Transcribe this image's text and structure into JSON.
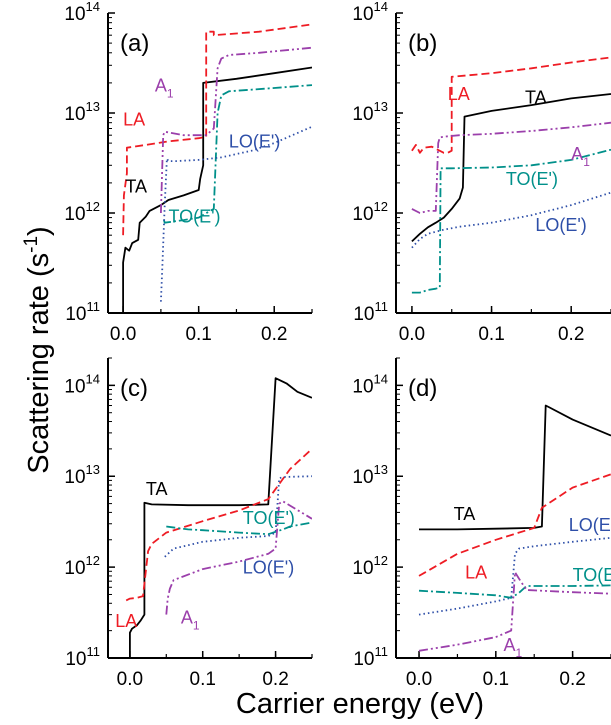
{
  "figure": {
    "ylabel": "Scattering rate (s",
    "ylabel_sup": "-1",
    "ylabel_close": ")",
    "xlabel": "Carrier energy (eV)"
  },
  "colors": {
    "TA": "#000000",
    "LA": "#ee1c24",
    "A1": "#9b3fab",
    "TO": "#00908a",
    "LO": "#2e4fa8",
    "axis": "#000000"
  },
  "chart_data": [
    {
      "panel": "(a)",
      "type": "line",
      "ylog": true,
      "xlim": [
        -0.02,
        0.25
      ],
      "ylim": [
        100000000000.0,
        100000000000000.0
      ],
      "xticks": [
        0.0,
        0.1,
        0.2
      ],
      "xticklabels": [
        "0.0",
        "0.1",
        "0.2"
      ],
      "yticks": [
        100000000000.0,
        1000000000000.0,
        10000000000000.0,
        100000000000000.0
      ],
      "yticklabels": [
        {
          "base": "10",
          "exp": "11"
        },
        {
          "base": "10",
          "exp": "12"
        },
        {
          "base": "10",
          "exp": "13"
        },
        {
          "base": "10",
          "exp": "14"
        }
      ],
      "series": [
        {
          "name": "TA",
          "style": "solid",
          "color_key": "TA",
          "x": [
            0.0,
            0.0,
            0.003,
            0.008,
            0.012,
            0.02,
            0.022,
            0.03,
            0.035,
            0.05,
            0.06,
            0.08,
            0.1,
            0.102,
            0.106,
            0.106,
            0.15,
            0.2,
            0.25
          ],
          "y": [
            100000000000.0,
            320000000000.0,
            450000000000.0,
            420000000000.0,
            500000000000.0,
            540000000000.0,
            800000000000.0,
            920000000000.0,
            1050000000000.0,
            1200000000000.0,
            1350000000000.0,
            1500000000000.0,
            1700000000000.0,
            2200000000000.0,
            3000000000000.0,
            20000000000000.0,
            22000000000000.0,
            25000000000000.0,
            28500000000000.0
          ]
        },
        {
          "name": "LA",
          "style": "dashed",
          "color_key": "LA",
          "x": [
            0.0,
            0.001,
            0.005,
            0.005,
            0.03,
            0.06,
            0.1,
            0.11,
            0.11,
            0.12,
            0.12,
            0.18,
            0.25
          ],
          "y": [
            600000000000.0,
            1500000000000.0,
            2500000000000.0,
            4500000000000.0,
            4800000000000.0,
            5200000000000.0,
            5600000000000.0,
            5800000000000.0,
            65000000000000.0,
            65000000000000.0,
            60000000000000.0,
            65000000000000.0,
            77000000000000.0
          ]
        },
        {
          "name": "A1",
          "style": "dashdotdot",
          "color_key": "A1",
          "x": [
            0.05,
            0.053,
            0.055,
            0.08,
            0.11,
            0.12,
            0.125,
            0.13,
            0.14,
            0.18,
            0.25
          ],
          "y": [
            1000000000000.0,
            6000000000000.0,
            6500000000000.0,
            6000000000000.0,
            6000000000000.0,
            7000000000000.0,
            28000000000000.0,
            35000000000000.0,
            38000000000000.0,
            40000000000000.0,
            45000000000000.0
          ]
        },
        {
          "name": "TO(E')",
          "style": "dashdot",
          "color_key": "TO",
          "x": [
            0.054,
            0.055,
            0.08,
            0.1,
            0.115,
            0.12,
            0.125,
            0.13,
            0.14,
            0.2,
            0.25
          ],
          "y": [
            850000000000.0,
            800000000000.0,
            850000000000.0,
            900000000000.0,
            1050000000000.0,
            1100000000000.0,
            10000000000000.0,
            15000000000000.0,
            16500000000000.0,
            17800000000000.0,
            19000000000000.0
          ]
        },
        {
          "name": "LO(E')",
          "style": "dotted",
          "color_key": "LO",
          "x": [
            0.05,
            0.052,
            0.055,
            0.058,
            0.06,
            0.07,
            0.1,
            0.13,
            0.17,
            0.2,
            0.25
          ],
          "y": [
            130000000000.0,
            300000000000.0,
            1200000000000.0,
            3500000000000.0,
            3300000000000.0,
            3300000000000.0,
            3400000000000.0,
            3600000000000.0,
            4200000000000.0,
            5000000000000.0,
            7300000000000.0
          ]
        }
      ],
      "labels": [
        {
          "text": "TA",
          "color_key": "TA",
          "x": 0.003,
          "y": 1600000000000.0
        },
        {
          "text": "LA",
          "color_key": "LA",
          "x": 0.0,
          "y": 7500000000000.0
        },
        {
          "text": "A",
          "sub": "1",
          "color_key": "A1",
          "x": 0.042,
          "y": 16500000000000.0
        },
        {
          "text": "LO(E')",
          "color_key": "LO",
          "x": 0.14,
          "y": 4500000000000.0
        },
        {
          "text": "TO(E')",
          "color_key": "TO",
          "x": 0.06,
          "y": 800000000000.0
        }
      ]
    },
    {
      "panel": "(b)",
      "type": "line",
      "ylog": true,
      "xlim": [
        -0.02,
        0.25
      ],
      "ylim": [
        100000000000.0,
        100000000000000.0
      ],
      "xticks": [
        0.0,
        0.1,
        0.2
      ],
      "xticklabels": [
        "0.0",
        "0.1",
        "0.2"
      ],
      "yticks": [
        100000000000.0,
        1000000000000.0,
        10000000000000.0,
        100000000000000.0
      ],
      "yticklabels": [
        {
          "base": "10",
          "exp": "11"
        },
        {
          "base": "10",
          "exp": "12"
        },
        {
          "base": "10",
          "exp": "13"
        },
        {
          "base": "10",
          "exp": "14"
        }
      ],
      "series": [
        {
          "name": "TA",
          "style": "solid",
          "color_key": "TA",
          "x": [
            0.0,
            0.01,
            0.02,
            0.03,
            0.04,
            0.05,
            0.06,
            0.064,
            0.066,
            0.1,
            0.15,
            0.2,
            0.25
          ],
          "y": [
            520000000000.0,
            620000000000.0,
            720000000000.0,
            800000000000.0,
            900000000000.0,
            1100000000000.0,
            1400000000000.0,
            1800000000000.0,
            9200000000000.0,
            10500000000000.0,
            12000000000000.0,
            14000000000000.0,
            15500000000000.0
          ]
        },
        {
          "name": "LA",
          "style": "dashed",
          "color_key": "LA",
          "x": [
            0.0,
            0.005,
            0.01,
            0.015,
            0.025,
            0.04,
            0.045,
            0.05,
            0.05,
            0.1,
            0.15,
            0.2,
            0.25
          ],
          "y": [
            4200000000000.0,
            4800000000000.0,
            4000000000000.0,
            4500000000000.0,
            4600000000000.0,
            4000000000000.0,
            4000000000000.0,
            4200000000000.0,
            23000000000000.0,
            25000000000000.0,
            28000000000000.0,
            32000000000000.0,
            36000000000000.0
          ]
        },
        {
          "name": "A1",
          "style": "dashdotdot",
          "color_key": "A1",
          "x": [
            0.0,
            0.01,
            0.02,
            0.03,
            0.033,
            0.035,
            0.04,
            0.06,
            0.1,
            0.15,
            0.2,
            0.25
          ],
          "y": [
            1100000000000.0,
            1000000000000.0,
            1050000000000.0,
            1050000000000.0,
            5000000000000.0,
            5700000000000.0,
            5800000000000.0,
            6000000000000.0,
            6200000000000.0,
            6600000000000.0,
            7200000000000.0,
            8000000000000.0
          ]
        },
        {
          "name": "TO(E')",
          "style": "dashdot",
          "color_key": "TO",
          "x": [
            0.0,
            0.01,
            0.02,
            0.03,
            0.035,
            0.036,
            0.05,
            0.1,
            0.15,
            0.2,
            0.25
          ],
          "y": [
            160000000000.0,
            160000000000.0,
            170000000000.0,
            175000000000.0,
            180000000000.0,
            2800000000000.0,
            2800000000000.0,
            2850000000000.0,
            3000000000000.0,
            3400000000000.0,
            4300000000000.0
          ]
        },
        {
          "name": "LO(E')",
          "style": "dotted",
          "color_key": "LO",
          "x": [
            0.0,
            0.01,
            0.02,
            0.03,
            0.04,
            0.06,
            0.1,
            0.15,
            0.2,
            0.25
          ],
          "y": [
            450000000000.0,
            550000000000.0,
            620000000000.0,
            650000000000.0,
            680000000000.0,
            730000000000.0,
            800000000000.0,
            950000000000.0,
            1200000000000.0,
            1600000000000.0
          ]
        }
      ],
      "labels": [
        {
          "text": "LA",
          "color_key": "LA",
          "x": 0.045,
          "y": 13500000000000.0
        },
        {
          "text": "TA",
          "color_key": "TA",
          "x": 0.142,
          "y": 12500000000000.0
        },
        {
          "text": "A",
          "sub": "1",
          "color_key": "A1",
          "x": 0.2,
          "y": 3400000000000.0
        },
        {
          "text": "TO(E')",
          "color_key": "TO",
          "x": 0.118,
          "y": 1900000000000.0
        },
        {
          "text": "LO(E')",
          "color_key": "LO",
          "x": 0.155,
          "y": 660000000000.0
        }
      ]
    },
    {
      "panel": "(c)",
      "type": "line",
      "ylog": true,
      "xlim": [
        -0.03,
        0.25
      ],
      "ylim": [
        100000000000.0,
        200000000000000.0
      ],
      "xticks": [
        0.0,
        0.1,
        0.2
      ],
      "xticklabels": [
        "0.0",
        "0.1",
        "0.2"
      ],
      "yticks": [
        100000000000.0,
        1000000000000.0,
        10000000000000.0,
        100000000000000.0
      ],
      "yticklabels": [
        {
          "base": "10",
          "exp": "11"
        },
        {
          "base": "10",
          "exp": "12"
        },
        {
          "base": "10",
          "exp": "13"
        },
        {
          "base": "10",
          "exp": "14"
        }
      ],
      "series": [
        {
          "name": "TA",
          "style": "solid",
          "color_key": "TA",
          "x": [
            0.0,
            0.0,
            0.003,
            0.01,
            0.015,
            0.02,
            0.02,
            0.03,
            0.08,
            0.15,
            0.19,
            0.19,
            0.2,
            0.215,
            0.23,
            0.25
          ],
          "y": [
            100000000000.0,
            190000000000.0,
            210000000000.0,
            230000000000.0,
            260000000000.0,
            300000000000.0,
            5100000000000.0,
            4900000000000.0,
            4800000000000.0,
            4800000000000.0,
            4900000000000.0,
            5000000000000.0,
            120000000000000.0,
            105000000000000.0,
            85000000000000.0,
            73000000000000.0
          ]
        },
        {
          "name": "LA",
          "style": "dashed",
          "color_key": "LA",
          "x": [
            -0.005,
            0.0,
            0.01,
            0.018,
            0.025,
            0.03,
            0.05,
            0.1,
            0.15,
            0.19,
            0.22,
            0.25
          ],
          "y": [
            430000000000.0,
            450000000000.0,
            460000000000.0,
            480000000000.0,
            1500000000000.0,
            1800000000000.0,
            2400000000000.0,
            3200000000000.0,
            4200000000000.0,
            5600000000000.0,
            12000000000000.0,
            20000000000000.0
          ]
        },
        {
          "name": "TO(E')",
          "style": "dashdot",
          "color_key": "TO",
          "x": [
            0.05,
            0.08,
            0.1,
            0.15,
            0.19,
            0.21,
            0.22,
            0.25
          ],
          "y": [
            2800000000000.0,
            2600000000000.0,
            2550000000000.0,
            2400000000000.0,
            2300000000000.0,
            2600000000000.0,
            2800000000000.0,
            3100000000000.0
          ]
        },
        {
          "name": "LO(E')",
          "style": "dotted",
          "color_key": "LO",
          "x": [
            0.048,
            0.06,
            0.1,
            0.15,
            0.19,
            0.2,
            0.205,
            0.21,
            0.25
          ],
          "y": [
            1300000000000.0,
            1600000000000.0,
            1900000000000.0,
            2100000000000.0,
            2200000000000.0,
            2400000000000.0,
            9500000000000.0,
            9800000000000.0,
            10000000000000.0
          ]
        },
        {
          "name": "A1",
          "style": "dashdotdot",
          "color_key": "A1",
          "x": [
            0.05,
            0.052,
            0.055,
            0.06,
            0.1,
            0.15,
            0.19,
            0.2,
            0.205,
            0.21,
            0.25
          ],
          "y": [
            300000000000.0,
            450000000000.0,
            580000000000.0,
            720000000000.0,
            950000000000.0,
            1150000000000.0,
            1400000000000.0,
            1600000000000.0,
            5000000000000.0,
            5300000000000.0,
            3400000000000.0
          ]
        }
      ],
      "labels": [
        {
          "text": "TA",
          "color_key": "TA",
          "x": 0.022,
          "y": 6200000000000.0
        },
        {
          "text": "LA",
          "color_key": "LA",
          "x": -0.02,
          "y": 220000000000.0
        },
        {
          "text": "TO(E')",
          "color_key": "TO",
          "x": 0.155,
          "y": 3000000000000.0
        },
        {
          "text": "LO(E')",
          "color_key": "LO",
          "x": 0.155,
          "y": 850000000000.0
        },
        {
          "text": "A",
          "sub": "1",
          "color_key": "A1",
          "x": 0.07,
          "y": 240000000000.0
        }
      ]
    },
    {
      "panel": "(d)",
      "type": "line",
      "ylog": true,
      "xlim": [
        -0.03,
        0.25
      ],
      "ylim": [
        100000000000.0,
        200000000000000.0
      ],
      "xticks": [
        0.0,
        0.1,
        0.2
      ],
      "xticklabels": [
        "0.0",
        "0.1",
        "0.2"
      ],
      "yticks": [
        100000000000.0,
        1000000000000.0,
        10000000000000.0,
        100000000000000.0
      ],
      "yticklabels": [
        {
          "base": "10",
          "exp": "11"
        },
        {
          "base": "10",
          "exp": "12"
        },
        {
          "base": "10",
          "exp": "13"
        },
        {
          "base": "10",
          "exp": "14"
        }
      ],
      "series": [
        {
          "name": "TA",
          "style": "solid",
          "color_key": "TA",
          "x": [
            0.0,
            0.05,
            0.1,
            0.15,
            0.16,
            0.165,
            0.17,
            0.2,
            0.25
          ],
          "y": [
            2600000000000.0,
            2600000000000.0,
            2650000000000.0,
            2700000000000.0,
            2800000000000.0,
            60000000000000.0,
            57000000000000.0,
            42000000000000.0,
            28000000000000.0
          ]
        },
        {
          "name": "LA",
          "style": "dashed",
          "color_key": "LA",
          "x": [
            0.0,
            0.05,
            0.1,
            0.15,
            0.16,
            0.2,
            0.25
          ],
          "y": [
            800000000000.0,
            1400000000000.0,
            2000000000000.0,
            2700000000000.0,
            4500000000000.0,
            7500000000000.0,
            10500000000000.0
          ]
        },
        {
          "name": "LO(E')",
          "style": "dotted",
          "color_key": "LO",
          "x": [
            0.0,
            0.05,
            0.1,
            0.12,
            0.125,
            0.13,
            0.15,
            0.2,
            0.25
          ],
          "y": [
            300000000000.0,
            350000000000.0,
            420000000000.0,
            460000000000.0,
            1400000000000.0,
            1600000000000.0,
            1700000000000.0,
            1900000000000.0,
            2100000000000.0
          ]
        },
        {
          "name": "TO(E')",
          "style": "dashdot",
          "color_key": "TO",
          "x": [
            0.0,
            0.05,
            0.1,
            0.12,
            0.13,
            0.14,
            0.2,
            0.25
          ],
          "y": [
            550000000000.0,
            520000000000.0,
            490000000000.0,
            460000000000.0,
            520000000000.0,
            620000000000.0,
            620000000000.0,
            630000000000.0
          ]
        },
        {
          "name": "A1",
          "style": "dashdotdot",
          "color_key": "A1",
          "x": [
            0.0,
            0.05,
            0.1,
            0.12,
            0.125,
            0.13,
            0.14,
            0.2,
            0.25
          ],
          "y": [
            120000000000.0,
            140000000000.0,
            170000000000.0,
            200000000000.0,
            880000000000.0,
            750000000000.0,
            560000000000.0,
            530000000000.0,
            510000000000.0
          ]
        }
      ],
      "labels": [
        {
          "text": "TA",
          "color_key": "TA",
          "x": 0.045,
          "y": 3300000000000.0
        },
        {
          "text": "LA",
          "color_key": "LA",
          "x": 0.06,
          "y": 750000000000.0
        },
        {
          "text": "LO(E')",
          "color_key": "LO",
          "x": 0.195,
          "y": 2500000000000.0
        },
        {
          "text": "TO(E')",
          "color_key": "TO",
          "x": 0.2,
          "y": 700000000000.0
        },
        {
          "text": "A",
          "sub": "1",
          "color_key": "A1",
          "x": 0.11,
          "y": 120000000000.0
        }
      ]
    }
  ]
}
